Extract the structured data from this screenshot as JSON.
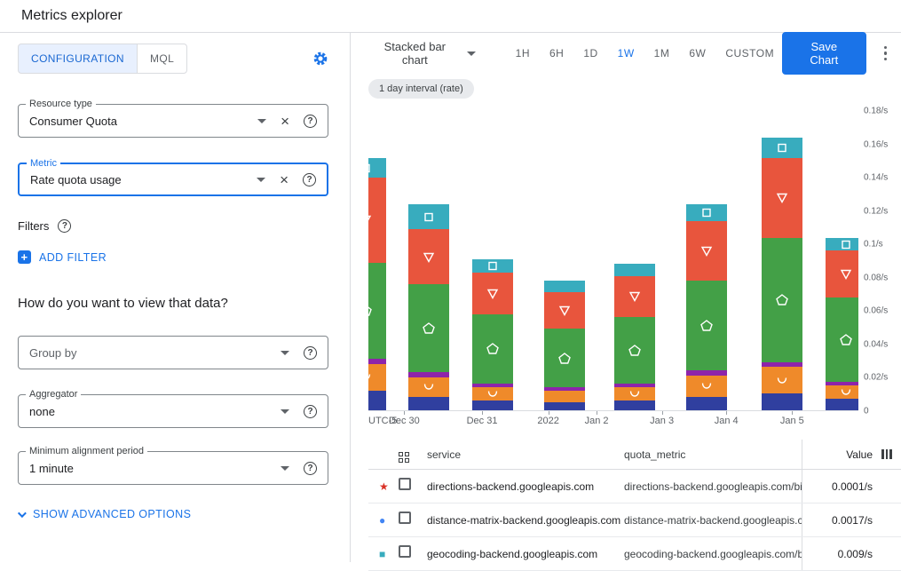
{
  "header": {
    "title": "Metrics explorer"
  },
  "panel": {
    "tabs": {
      "configuration": "CONFIGURATION",
      "mql": "MQL"
    },
    "resource_type": {
      "label": "Resource type",
      "value": "Consumer Quota"
    },
    "metric": {
      "label": "Metric",
      "value": "Rate quota usage"
    },
    "filters_label": "Filters",
    "add_filter": "ADD FILTER",
    "view_heading": "How do you want to view that data?",
    "group_by_placeholder": "Group by",
    "aggregator": {
      "label": "Aggregator",
      "value": "none"
    },
    "alignment": {
      "label": "Minimum alignment period",
      "value": "1 minute"
    },
    "advanced": "SHOW ADVANCED OPTIONS"
  },
  "toolbar": {
    "chart_type": "Stacked bar chart",
    "ranges": [
      "1H",
      "6H",
      "1D",
      "1W",
      "1M",
      "6W",
      "CUSTOM"
    ],
    "active_range": "1W",
    "save_label": "Save Chart"
  },
  "interval_chip": "1 day interval (rate)",
  "colors": {
    "accent_blue": "#1a73e8",
    "active_tab_bg": "#e8f0fe",
    "chip_bg": "#e8eaed"
  },
  "chart_data": {
    "type": "bar",
    "stacked": true,
    "unit": "/s",
    "ylim": [
      0,
      0.18
    ],
    "x_axis_prefix": "UTC-5",
    "x_tick_labels": [
      "Dec 30",
      "Dec 31",
      "2022",
      "Jan 2",
      "Jan 3",
      "Jan 4",
      "Jan 5"
    ],
    "y_tick_labels": [
      "0.18/s",
      "0.16/s",
      "0.14/s",
      "0.12/s",
      "0.1/s",
      "0.08/s",
      "0.06/s",
      "0.04/s",
      "0.02/s",
      "0"
    ],
    "legend_position": "bottom-table",
    "grid": false,
    "series": [
      {
        "name": "indigo",
        "color": "#303f9f",
        "marker": "none",
        "values": [
          0.012,
          0.008,
          0.006,
          0.005,
          0.006,
          0.008,
          0.01,
          0.007
        ]
      },
      {
        "name": "orange",
        "color": "#ef8a2a",
        "marker": "arc",
        "values": [
          0.016,
          0.012,
          0.008,
          0.007,
          0.008,
          0.013,
          0.016,
          0.008
        ]
      },
      {
        "name": "purple",
        "color": "#8e24aa",
        "marker": "none",
        "values": [
          0.003,
          0.003,
          0.002,
          0.002,
          0.002,
          0.003,
          0.003,
          0.002
        ]
      },
      {
        "name": "green",
        "color": "#43a047",
        "marker": "pentagon",
        "values": [
          0.058,
          0.053,
          0.042,
          0.035,
          0.04,
          0.054,
          0.075,
          0.051
        ]
      },
      {
        "name": "red",
        "color": "#e8553d",
        "marker": "triangle-down",
        "values": [
          0.051,
          0.033,
          0.025,
          0.022,
          0.025,
          0.036,
          0.048,
          0.028
        ]
      },
      {
        "name": "teal",
        "color": "#38acbe",
        "marker": "square",
        "values": [
          0.012,
          0.015,
          0.008,
          0.007,
          0.007,
          0.01,
          0.012,
          0.008
        ]
      }
    ]
  },
  "table": {
    "col_service": "service",
    "col_quota_metric": "quota_metric",
    "col_value": "Value",
    "rows": [
      {
        "marker": "star",
        "color": "#d93025",
        "service": "directions-backend.googleapis.com",
        "quota_metric": "directions-backend.googleapis.com/billabl",
        "value": "0.0001/s"
      },
      {
        "marker": "circle",
        "color": "#4285f4",
        "service": "distance-matrix-backend.googleapis.com",
        "quota_metric": "distance-matrix-backend.googleapis.com/l",
        "value": "0.0017/s"
      },
      {
        "marker": "square",
        "color": "#38acbe",
        "service": "geocoding-backend.googleapis.com",
        "quota_metric": "geocoding-backend.googleapis.com/billab",
        "value": "0.009/s"
      }
    ]
  }
}
